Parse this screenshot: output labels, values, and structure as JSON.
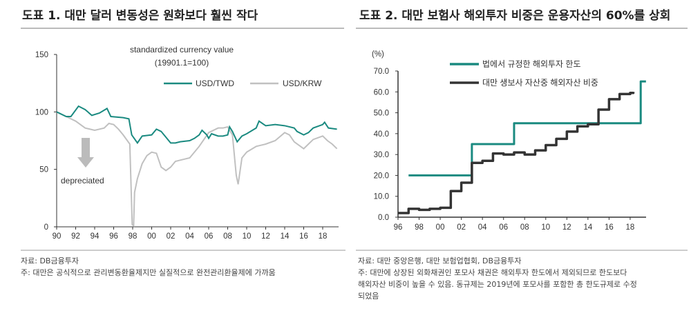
{
  "chart_data": [
    {
      "type": "line",
      "title": "도표 1. 대만 달러 변동성은 원화보다 훨씬 작다",
      "subtitle_line1": "standardized currency value",
      "subtitle_line2": "(19901.1=100)",
      "annotation": "depreciated",
      "ylim": [
        0,
        150
      ],
      "yticks": [
        0,
        50,
        100,
        150
      ],
      "xlim": [
        1990,
        2019.5
      ],
      "xticks": [
        "90",
        "92",
        "94",
        "96",
        "98",
        "00",
        "02",
        "04",
        "06",
        "08",
        "10",
        "12",
        "14",
        "16",
        "18"
      ],
      "legend_placement": "top-right",
      "colors": {
        "USD/TWD": "#1a8a80",
        "USD/KRW": "#c0c0c0"
      },
      "series": [
        {
          "name": "USD/TWD",
          "x": [
            1990,
            1991,
            1991.5,
            1992.3,
            1993,
            1993.7,
            1994.5,
            1995.3,
            1995.7,
            1997,
            1997.6,
            1997.9,
            1998.5,
            1999,
            2000,
            2000.5,
            2001,
            2001.5,
            2002,
            2002.5,
            2003,
            2004,
            2004.5,
            2005,
            2005.3,
            2005.8,
            2006,
            2006.3,
            2007,
            2007.5,
            2008,
            2008.2,
            2008.5,
            2009,
            2009.5,
            2010,
            2011,
            2011.3,
            2012,
            2013,
            2014,
            2015,
            2015.3,
            2016,
            2016.5,
            2017,
            2018,
            2018.2,
            2018.6,
            2019.5
          ],
          "y": [
            100,
            96,
            96,
            105,
            102,
            97,
            99,
            103,
            96,
            95,
            94,
            80,
            73,
            79,
            80,
            85,
            83,
            78,
            73,
            73,
            74,
            75,
            77,
            80,
            84,
            80,
            77,
            81,
            79,
            79,
            80,
            87,
            83,
            74,
            79,
            81,
            86,
            92,
            88,
            89,
            88,
            86,
            83,
            80,
            82,
            86,
            89,
            91,
            86,
            85
          ]
        },
        {
          "name": "USD/KRW",
          "x": [
            1990,
            1991,
            1992,
            1993,
            1994,
            1995,
            1995.5,
            1996,
            1996.5,
            1997,
            1997.7,
            1997.95,
            1998.1,
            1998.2,
            1998.5,
            1999,
            1999.5,
            2000,
            2000.5,
            2001,
            2001.5,
            2002,
            2002.5,
            2003,
            2004,
            2005,
            2005.5,
            2006,
            2007,
            2007.5,
            2008,
            2008.5,
            2008.9,
            2009.1,
            2009.5,
            2010,
            2011,
            2012,
            2013,
            2014,
            2014.5,
            2015,
            2016,
            2016.5,
            2017,
            2018,
            2018.5,
            2019,
            2019.5
          ],
          "y": [
            100,
            96,
            92,
            86,
            84,
            86,
            90,
            89,
            85,
            80,
            72,
            2,
            1,
            30,
            42,
            55,
            62,
            65,
            64,
            52,
            49,
            52,
            57,
            58,
            60,
            70,
            76,
            82,
            86,
            86,
            87,
            80,
            45,
            37,
            60,
            65,
            70,
            72,
            75,
            82,
            80,
            74,
            68,
            72,
            76,
            79,
            75,
            72,
            68
          ]
        }
      ],
      "source": "자료: DB금융투자",
      "note": "주: 대만은 공식적으로 관리변동환율제지만 실질적으로 완전관리환율제에 가까움"
    },
    {
      "type": "line",
      "title": "도표 2. 대만 보험사 해외투자 비중은 운용자산의 60%를 상회",
      "ylabel": "(%)",
      "ylim": [
        0,
        70
      ],
      "yticks": [
        "0.0",
        "10.0",
        "20.0",
        "30.0",
        "40.0",
        "50.0",
        "60.0",
        "70.0"
      ],
      "xlim": [
        1996,
        2019.5
      ],
      "xticks": [
        "96",
        "98",
        "00",
        "02",
        "04",
        "06",
        "08",
        "10",
        "12",
        "14",
        "16",
        "18"
      ],
      "legend_placement": "top-left",
      "colors": {
        "limit": "#1a8a80",
        "share": "#333333"
      },
      "series": [
        {
          "name": "법에서 규정한 해외투자 한도",
          "step": true,
          "x": [
            1997,
            2003,
            2007,
            2019,
            2019.5
          ],
          "y": [
            20,
            35,
            45,
            65,
            65
          ]
        },
        {
          "name": "대만 생보사 자산중 해외자산 비중",
          "step": true,
          "x": [
            1996,
            1997,
            1998,
            1999,
            2000,
            2001,
            2002,
            2003,
            2004,
            2005,
            2006,
            2007,
            2008,
            2009,
            2010,
            2011,
            2012,
            2013,
            2014,
            2015,
            2016,
            2017,
            2018,
            2018.3
          ],
          "y": [
            2,
            4,
            3.5,
            4,
            4.5,
            12.5,
            16.5,
            26,
            27,
            30.5,
            30,
            31,
            30,
            32,
            34.5,
            37.5,
            41,
            43.5,
            44.5,
            51.5,
            56.5,
            59,
            59.5,
            60
          ]
        }
      ],
      "source": "자료: 대만 중앙은행, 대만 보험업협회, DB금융투자",
      "note": "주: 대만에 상장된 외화채권인 포모사 채권은 해외투자 한도에서 제외되므로 한도보다\n해외자산 비중이 높을 수 있음. 동규제는 2019년에 포모사를 포함한 총 한도규제로 수정\n되었음"
    }
  ]
}
